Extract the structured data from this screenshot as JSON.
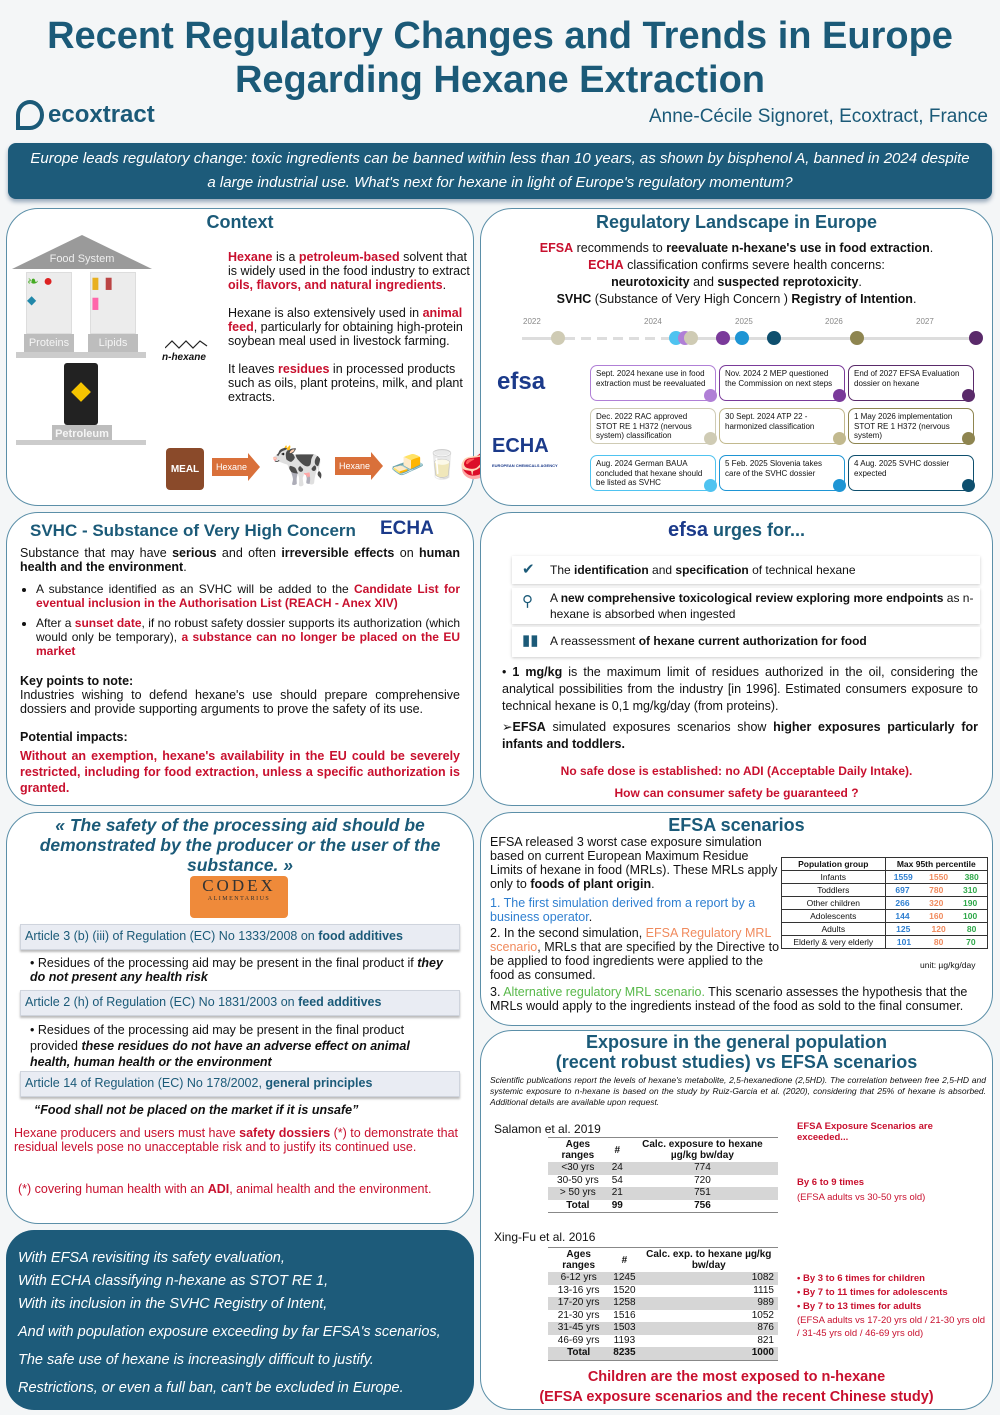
{
  "header": {
    "title_line1": "Recent Regulatory Changes and Trends in Europe",
    "title_line2": "Regarding Hexane Extraction",
    "logo": "ecoxtract",
    "author": "Anne-Cécile Signoret, Ecoxtract, France",
    "banner": "Europe leads regulatory change: toxic ingredients can be banned within less than 10 years, as shown by bisphenol A, banned in 2024 despite a large industrial use. What's next for hexane in light of Europe's regulatory momentum?"
  },
  "context": {
    "title": "Context",
    "roof": "Food System",
    "pillar1": "Proteins",
    "pillar2": "Lipids",
    "base": "Petroleum",
    "molecule": "n-hexane",
    "meal": "MEAL",
    "arrow1": "Hexane",
    "arrow2": "Hexane",
    "p1": [
      [
        "Hexane",
        "r"
      ],
      [
        " is a ",
        ""
      ],
      [
        "petroleum-based",
        "r"
      ],
      [
        " solvent that is widely used in the food industry to extract ",
        ""
      ],
      [
        "oils, flavors, and natural ingredients",
        "r"
      ],
      [
        ".",
        ""
      ]
    ],
    "p2": [
      [
        "Hexane is also extensively used in ",
        ""
      ],
      [
        "animal feed",
        "r"
      ],
      [
        ", particularly for obtaining high-protein soybean meal used in livestock farming.",
        ""
      ]
    ],
    "p3": [
      [
        "It leaves ",
        ""
      ],
      [
        "residues",
        "r"
      ],
      [
        " in processed products such as oils, plant proteins, milk, and plant extracts.",
        ""
      ]
    ]
  },
  "regulatory": {
    "title": "Regulatory Landscape in Europe",
    "l1": [
      [
        "EFSA",
        "r"
      ],
      [
        " recommends to ",
        ""
      ],
      [
        "reevaluate n-hexane's use in food extraction",
        "b"
      ],
      [
        ".",
        ""
      ]
    ],
    "l2": [
      [
        "ECHA",
        "r"
      ],
      [
        " classification confirms severe health concerns:",
        ""
      ]
    ],
    "l3": [
      [
        "neurotoxicity",
        "b"
      ],
      [
        " and ",
        ""
      ],
      [
        "suspected reprotoxicity",
        "b"
      ],
      [
        ".",
        ""
      ]
    ],
    "l4": [
      [
        "SVHC",
        "b"
      ],
      [
        " (Substance of Very High Concern ) ",
        ""
      ],
      [
        "Registry of Intention",
        "b"
      ],
      [
        ".",
        ""
      ]
    ],
    "years": [
      "2022",
      "2024",
      "2025",
      "2026",
      "2027"
    ],
    "efsa_logo": "efsa",
    "echa_logo": "ECHA",
    "echa_sub": "EUROPEAN CHEMICALS AGENCY",
    "cards": [
      {
        "text": "Sept. 2024 hexane use in food extraction must be reevaluated",
        "color": "#b07fd6"
      },
      {
        "text": "Nov. 2024 2 MEP questioned the Commission on next steps",
        "color": "#7a3a9a"
      },
      {
        "text": "End of 2027 EFSA Evaluation dossier on hexane",
        "color": "#5a2a6a"
      },
      {
        "text": "Dec. 2022 RAC approved STOT RE 1 H372 (nervous system) classification",
        "color": "#cfcbb4"
      },
      {
        "text": "30 Sept. 2024 ATP 22 - harmonized classification",
        "color": "#c2b98e"
      },
      {
        "text": "1 May 2026 implementation STOT RE 1 H372 (nervous system)",
        "color": "#8e8550"
      },
      {
        "text": "Aug. 2024 German BAUA concluded that hexane should be listed as SVHC",
        "color": "#4fc3f0"
      },
      {
        "text": "5 Feb. 2025 Slovenia takes care of the SVHC dossier",
        "color": "#1e95d4"
      },
      {
        "text": "4 Aug. 2025 SVHC dossier expected",
        "color": "#0e4f6e"
      }
    ]
  },
  "svhc": {
    "title": "SVHC - Substance of Very High Concern",
    "logo": "ECHA",
    "intro": [
      [
        "Substance that may have ",
        ""
      ],
      [
        "serious",
        "b"
      ],
      [
        " and often ",
        ""
      ],
      [
        "irreversible effects",
        "b"
      ],
      [
        " on ",
        ""
      ],
      [
        "human health and the environment",
        "b"
      ],
      [
        ".",
        ""
      ]
    ],
    "b1": [
      [
        "A substance identified as an SVHC will be added to the ",
        ""
      ],
      [
        "Candidate List for eventual inclusion in the Authorisation List (REACH - Anex XIV)",
        "r"
      ]
    ],
    "b2": [
      [
        "After a ",
        ""
      ],
      [
        "sunset date",
        "r"
      ],
      [
        ", if no robust safety dossier supports its authorization (which would only be temporary), ",
        ""
      ],
      [
        "a substance can no longer be placed on the EU market",
        "r"
      ]
    ],
    "key_title": "Key points to note:",
    "key_text": "Industries wishing to defend hexane's use should prepare comprehensive dossiers and provide supporting arguments to prove the safety of its use.",
    "impact_title": "Potential impacts:",
    "impact_text": "Without an exemption, hexane's availability in the EU could be severely restricted, including for food extraction, unless a specific authorization is granted."
  },
  "urges": {
    "logo": "efsa",
    "title": "urges for...",
    "items": [
      {
        "icon": "check-icon",
        "text": [
          [
            "The ",
            ""
          ],
          [
            "identification",
            "b"
          ],
          [
            " and ",
            ""
          ],
          [
            "specification",
            "b"
          ],
          [
            " of technical hexane",
            ""
          ]
        ]
      },
      {
        "icon": "search-icon",
        "text": [
          [
            "A ",
            ""
          ],
          [
            "new comprehensive toxicological review exploring more endpoints",
            "b"
          ],
          [
            " as n-hexane is absorbed when ingested",
            ""
          ]
        ]
      },
      {
        "icon": "bar-chart-icon",
        "text": [
          [
            "A reassessment ",
            ""
          ],
          [
            "of hexane current authorization for food",
            "b"
          ]
        ]
      }
    ],
    "p1": [
      [
        "• ",
        ""
      ],
      [
        "1 mg/kg",
        "b"
      ],
      [
        " is the maximum limit of residues authorized in the oil, considering the analytical possibilities from the industry [in 1996]. Estimated consumers exposure to technical hexane is 0,1 mg/kg/day (from proteins).",
        ""
      ]
    ],
    "p2": [
      [
        "➢",
        ""
      ],
      [
        "EFSA",
        "b"
      ],
      [
        " simulated exposures scenarios show ",
        ""
      ],
      [
        "higher exposures particularly for infants and toddlers.",
        "b"
      ]
    ],
    "warn1": "No safe dose is established: no ADI (Acceptable Daily Intake).",
    "warn2": "How can consumer safety be guaranteed ?"
  },
  "safety": {
    "quote": "« The safety of the processing aid should be demonstrated by the producer or the user of the substance. »",
    "codex": "CODEX",
    "codex_sub": "ALIMENTARIUS",
    "a1": [
      [
        "Article 3 (b) (iii) of Regulation (EC) No 1333/2008 on ",
        ""
      ],
      [
        "food additives",
        "b"
      ]
    ],
    "a1_text": [
      [
        "Residues of the processing aid may be present in the final product if ",
        ""
      ],
      [
        "they do not present any health risk",
        "bi"
      ]
    ],
    "a2": [
      [
        "Article 2 (h) of Regulation (EC) No 1831/2003 on ",
        ""
      ],
      [
        "feed additives",
        "b"
      ]
    ],
    "a2_text": [
      [
        "Residues of the processing aid may be present in the final product provided ",
        ""
      ],
      [
        "these residues do not have an adverse effect on animal health, human health or the environment",
        "bi"
      ]
    ],
    "a3": [
      [
        "Article 14 of Regulation (EC) No 178/2002, ",
        ""
      ],
      [
        "general principles",
        "b"
      ]
    ],
    "a3_text": "“Food shall not be placed on the market if it is unsafe”",
    "note": [
      [
        "Hexane producers and users must have ",
        ""
      ],
      [
        "safety dossiers",
        "b"
      ],
      [
        " (*) to demonstrate that residual levels pose no unacceptable risk and to justify its continued use.",
        ""
      ]
    ],
    "footnote": [
      [
        "(*) covering human health with an ",
        ""
      ],
      [
        "ADI",
        "b"
      ],
      [
        ", animal health and the environment.",
        ""
      ]
    ]
  },
  "scenarios": {
    "title": "EFSA scenarios",
    "intro": [
      [
        "EFSA released 3 worst case exposure simulation based on current European Maximum Residue Limits of hexane in food (MRLs). These MRLs apply only to ",
        ""
      ],
      [
        "foods of plant origin",
        "b"
      ],
      [
        ".",
        ""
      ]
    ],
    "s1": [
      [
        "1. The first simulation derived from a report by a business operator",
        "blue"
      ],
      [
        ".",
        ""
      ]
    ],
    "s2": [
      [
        "2. In the second simulation, ",
        ""
      ],
      [
        "EFSA Regulatory MRL scenario",
        "orange"
      ],
      [
        ", MRLs that are specified by the Directive to be applied to food ingredients were applied to the food as consumed.",
        ""
      ]
    ],
    "s3": [
      [
        "3. ",
        ""
      ],
      [
        "Alternative regulatory MRL scenario.",
        "green"
      ],
      [
        " This scenario assesses the hypothesis that the MRLs would apply to the ingredients instead of the food as sold to the final consumer.",
        ""
      ]
    ],
    "table": {
      "headers": [
        "Population group",
        "Max 95th percentile"
      ],
      "rows": [
        [
          "Infants",
          "1559",
          "1550",
          "380"
        ],
        [
          "Toddlers",
          "697",
          "780",
          "310"
        ],
        [
          "Other children",
          "266",
          "320",
          "190"
        ],
        [
          "Adolescents",
          "144",
          "160",
          "100"
        ],
        [
          "Adults",
          "125",
          "120",
          "80"
        ],
        [
          "Elderly & very elderly",
          "101",
          "80",
          "70"
        ]
      ]
    },
    "unit": "unit: µg/kg/day"
  },
  "exposure": {
    "title1": "Exposure in the general population",
    "title2": "(recent robust studies) vs EFSA scenarios",
    "intro": "Scientific publications report the levels of hexane's metabolite, 2,5-hexanedione (2,5HD). The correlation between free 2,5-HD and systemic exposure to n-hexane is based on the study by Ruiz-Garcia et al. (2020), considering that 25% of hexane is absorbed. Additional details are available upon request.",
    "study1": {
      "name": "Salamon et al. 2019",
      "headers": [
        "Ages ranges",
        "#",
        "Calc. exposure to hexane µg/kg bw/day"
      ],
      "rows": [
        [
          "<30 yrs",
          "24",
          "774"
        ],
        [
          "30-50 yrs",
          "54",
          "720"
        ],
        [
          "> 50 yrs",
          "21",
          "751"
        ]
      ],
      "total": [
        "Total",
        "99",
        "756"
      ]
    },
    "note1": "EFSA Exposure Scenarios are exceeded...",
    "note2": "By 6 to 9 times",
    "note3": "(EFSA adults vs 30-50 yrs old)",
    "study2": {
      "name": "Xing-Fu et al. 2016",
      "headers": [
        "Ages ranges",
        "#",
        "Calc. exp. to hexane µg/kg bw/day"
      ],
      "rows": [
        [
          "6-12 yrs",
          "1245",
          "1082"
        ],
        [
          "13-16 yrs",
          "1520",
          "1115"
        ],
        [
          "17-20 yrs",
          "1258",
          "989"
        ],
        [
          "21-30 yrs",
          "1516",
          "1052"
        ],
        [
          "31-45 yrs",
          "1503",
          "876"
        ],
        [
          "46-69 yrs",
          "1193",
          "821"
        ]
      ],
      "total": [
        "Total",
        "8235",
        "1000"
      ]
    },
    "bullets": [
      "By 3 to 6 times for children",
      "By 7 to 11 times for adolescents",
      "By 7 to 13 times for adults"
    ],
    "note4": "(EFSA adults vs 17-20 yrs old / 21-30 yrs old / 31-45 yrs old / 46-69 yrs old)",
    "final1": "Children are the most exposed to n-hexane",
    "final2": "(EFSA exposure scenarios and  the recent Chinese study)"
  },
  "conclusion": [
    "With EFSA revisiting its safety evaluation,",
    "With ECHA classifying n-hexane as STOT RE 1,",
    "With its inclusion in the SVHC Registry of Intent,",
    "And with population exposure exceeding by far EFSA's scenarios,",
    "The safe use of hexane is increasingly difficult to justify.",
    "Restrictions, or even a full ban, can't be excluded in Europe."
  ]
}
